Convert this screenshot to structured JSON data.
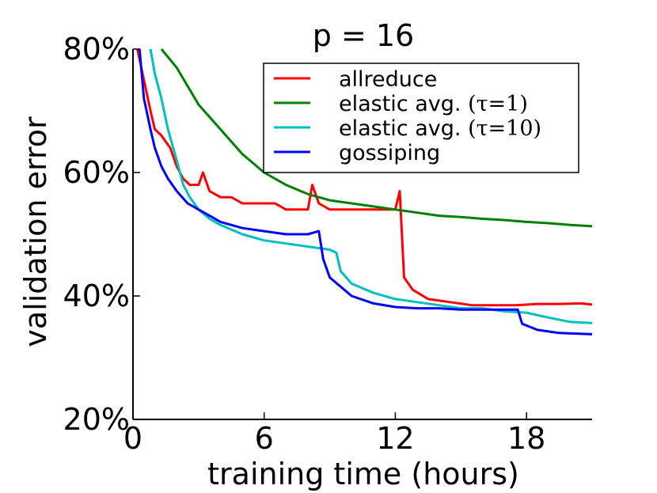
{
  "chart_data": {
    "type": "line",
    "title": "p = 16",
    "xlabel": "training time (hours)",
    "ylabel": "validation error",
    "xlim": [
      0,
      21
    ],
    "ylim": [
      20,
      80
    ],
    "xticks": [
      0,
      6,
      12,
      18
    ],
    "xtick_labels": [
      "0",
      "6",
      "12",
      "18"
    ],
    "yticks": [
      20,
      40,
      60,
      80
    ],
    "ytick_labels": [
      "20%",
      "40%",
      "60%",
      "80%"
    ],
    "legend_position": "top-right",
    "series": [
      {
        "name": "allreduce",
        "legend_text": "allreduce",
        "legend_suffix": "",
        "color": "#ff0000",
        "points": [
          [
            0.2,
            80
          ],
          [
            0.5,
            75
          ],
          [
            0.8,
            70
          ],
          [
            1.0,
            67
          ],
          [
            1.3,
            66
          ],
          [
            1.5,
            65
          ],
          [
            1.7,
            64
          ],
          [
            2.0,
            61
          ],
          [
            2.3,
            59
          ],
          [
            2.6,
            58
          ],
          [
            3.0,
            58
          ],
          [
            3.2,
            60
          ],
          [
            3.5,
            57
          ],
          [
            4.0,
            56
          ],
          [
            4.5,
            56
          ],
          [
            5.0,
            55
          ],
          [
            5.5,
            55
          ],
          [
            6.0,
            55
          ],
          [
            6.5,
            55
          ],
          [
            7.0,
            54
          ],
          [
            7.5,
            54
          ],
          [
            8.0,
            54
          ],
          [
            8.2,
            58
          ],
          [
            8.5,
            55
          ],
          [
            9.0,
            54
          ],
          [
            9.5,
            54
          ],
          [
            10.0,
            54
          ],
          [
            10.5,
            54
          ],
          [
            11.0,
            54
          ],
          [
            11.5,
            54
          ],
          [
            12.0,
            54
          ],
          [
            12.2,
            57
          ],
          [
            12.4,
            43
          ],
          [
            12.8,
            41
          ],
          [
            13.5,
            39.5
          ],
          [
            14.5,
            39
          ],
          [
            15.5,
            38.5
          ],
          [
            16.5,
            38.5
          ],
          [
            17.5,
            38.5
          ],
          [
            18.5,
            38.7
          ],
          [
            19.5,
            38.7
          ],
          [
            20.5,
            38.8
          ],
          [
            21.0,
            38.6
          ]
        ]
      },
      {
        "name": "elastic-avg-tau-1",
        "legend_text": "elastic avg. ",
        "legend_suffix": "(τ=1)",
        "color": "#008000",
        "points": [
          [
            1.3,
            80
          ],
          [
            2.0,
            77
          ],
          [
            2.5,
            74
          ],
          [
            3.0,
            71
          ],
          [
            4.0,
            67
          ],
          [
            5.0,
            63
          ],
          [
            6.0,
            60
          ],
          [
            7.0,
            58
          ],
          [
            8.0,
            56.5
          ],
          [
            9.0,
            55.5
          ],
          [
            10.0,
            55
          ],
          [
            11.0,
            54.5
          ],
          [
            12.0,
            54
          ],
          [
            13.0,
            53.5
          ],
          [
            14.0,
            53
          ],
          [
            15.0,
            52.8
          ],
          [
            16.0,
            52.5
          ],
          [
            17.0,
            52.3
          ],
          [
            18.0,
            52
          ],
          [
            19.0,
            51.8
          ],
          [
            20.0,
            51.5
          ],
          [
            21.0,
            51.3
          ]
        ]
      },
      {
        "name": "elastic-avg-tau-10",
        "legend_text": "elastic avg. ",
        "legend_suffix": "(τ=10)",
        "color": "#00bfbf",
        "points": [
          [
            0.8,
            80
          ],
          [
            1.0,
            76
          ],
          [
            1.3,
            72
          ],
          [
            1.6,
            67
          ],
          [
            2.0,
            62
          ],
          [
            2.3,
            58
          ],
          [
            2.6,
            56
          ],
          [
            3.0,
            54
          ],
          [
            3.5,
            52.5
          ],
          [
            4.0,
            51.5
          ],
          [
            5.0,
            50
          ],
          [
            6.0,
            49
          ],
          [
            7.0,
            48.5
          ],
          [
            8.0,
            48
          ],
          [
            9.0,
            47.5
          ],
          [
            9.3,
            47
          ],
          [
            9.5,
            44
          ],
          [
            10.0,
            42
          ],
          [
            11.0,
            40.5
          ],
          [
            12.0,
            39.5
          ],
          [
            13.0,
            39
          ],
          [
            14.0,
            38.5
          ],
          [
            15.0,
            38
          ],
          [
            16.0,
            38
          ],
          [
            17.0,
            37.5
          ],
          [
            18.0,
            37.3
          ],
          [
            19.0,
            36.5
          ],
          [
            20.0,
            35.8
          ],
          [
            21.0,
            35.6
          ]
        ]
      },
      {
        "name": "gossiping",
        "legend_text": "gossiping",
        "legend_suffix": "",
        "color": "#0000ff",
        "points": [
          [
            0.3,
            80
          ],
          [
            0.5,
            72
          ],
          [
            0.8,
            67
          ],
          [
            1.0,
            64
          ],
          [
            1.3,
            61
          ],
          [
            1.6,
            59
          ],
          [
            2.0,
            57
          ],
          [
            2.5,
            55
          ],
          [
            3.0,
            54
          ],
          [
            3.5,
            53
          ],
          [
            4.0,
            52
          ],
          [
            5.0,
            51
          ],
          [
            6.0,
            50.5
          ],
          [
            7.0,
            50
          ],
          [
            8.0,
            50
          ],
          [
            8.5,
            50.5
          ],
          [
            8.7,
            46
          ],
          [
            9.0,
            43
          ],
          [
            10.0,
            40
          ],
          [
            11.0,
            38.8
          ],
          [
            12.0,
            38.2
          ],
          [
            13.0,
            38
          ],
          [
            14.0,
            38
          ],
          [
            15.0,
            37.8
          ],
          [
            16.0,
            37.8
          ],
          [
            17.0,
            37.8
          ],
          [
            17.6,
            37.8
          ],
          [
            17.8,
            35.5
          ],
          [
            18.5,
            34.5
          ],
          [
            19.5,
            34
          ],
          [
            21.0,
            33.8
          ]
        ]
      }
    ]
  }
}
